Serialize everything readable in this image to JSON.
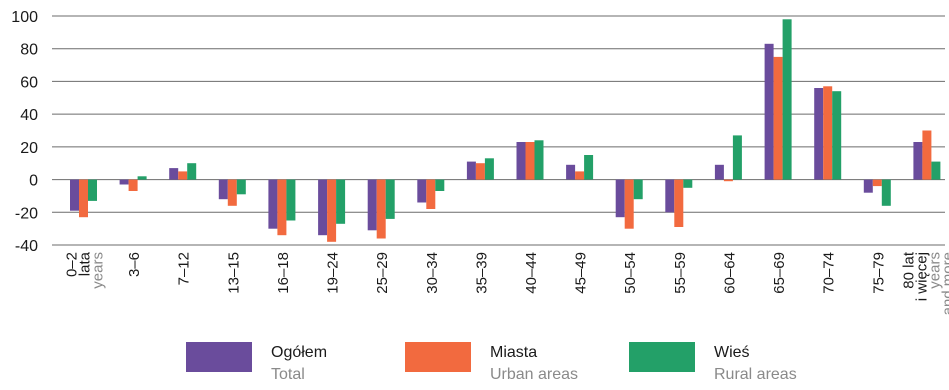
{
  "chart_data": {
    "type": "bar",
    "ylim": [
      -40,
      100
    ],
    "yticks": [
      -40,
      -20,
      0,
      20,
      40,
      60,
      80,
      100
    ],
    "grid": true,
    "categories": [
      {
        "label": [
          "0–2",
          "lata"
        ],
        "sub": [
          "years"
        ]
      },
      {
        "label": [
          "3–6"
        ],
        "sub": []
      },
      {
        "label": [
          "7–12"
        ],
        "sub": []
      },
      {
        "label": [
          "13–15"
        ],
        "sub": []
      },
      {
        "label": [
          "16–18"
        ],
        "sub": []
      },
      {
        "label": [
          "19–24"
        ],
        "sub": []
      },
      {
        "label": [
          "25–29"
        ],
        "sub": []
      },
      {
        "label": [
          "30–34"
        ],
        "sub": []
      },
      {
        "label": [
          "35–39"
        ],
        "sub": []
      },
      {
        "label": [
          "40–44"
        ],
        "sub": []
      },
      {
        "label": [
          "45–49"
        ],
        "sub": []
      },
      {
        "label": [
          "50–54"
        ],
        "sub": []
      },
      {
        "label": [
          "55–59"
        ],
        "sub": []
      },
      {
        "label": [
          "60–64"
        ],
        "sub": []
      },
      {
        "label": [
          "65–69"
        ],
        "sub": []
      },
      {
        "label": [
          "70–74"
        ],
        "sub": []
      },
      {
        "label": [
          "75–79"
        ],
        "sub": []
      },
      {
        "label": [
          "80 lat",
          "i więcej"
        ],
        "sub": [
          "years",
          "and more"
        ]
      }
    ],
    "series": [
      {
        "name": "Ogółem",
        "name_en": "Total",
        "color": "#6a4c9c",
        "values": [
          -19,
          -3,
          7,
          -12,
          -30,
          -34,
          -31,
          -14,
          11,
          23,
          9,
          -23,
          -20,
          9,
          83,
          56,
          -8,
          23
        ]
      },
      {
        "name": "Miasta",
        "name_en": "Urban areas",
        "color": "#f26a3f",
        "values": [
          -23,
          -7,
          5,
          -16,
          -34,
          -38,
          -36,
          -18,
          10,
          23,
          5,
          -30,
          -29,
          -1,
          75,
          57,
          -4,
          30
        ]
      },
      {
        "name": "Wieś",
        "name_en": "Rural areas",
        "color": "#23a068",
        "values": [
          -13,
          2,
          10,
          -9,
          -25,
          -27,
          -24,
          -7,
          13,
          24,
          15,
          -12,
          -5,
          27,
          98,
          54,
          -16,
          11
        ]
      }
    ],
    "legend_position": "bottom"
  }
}
